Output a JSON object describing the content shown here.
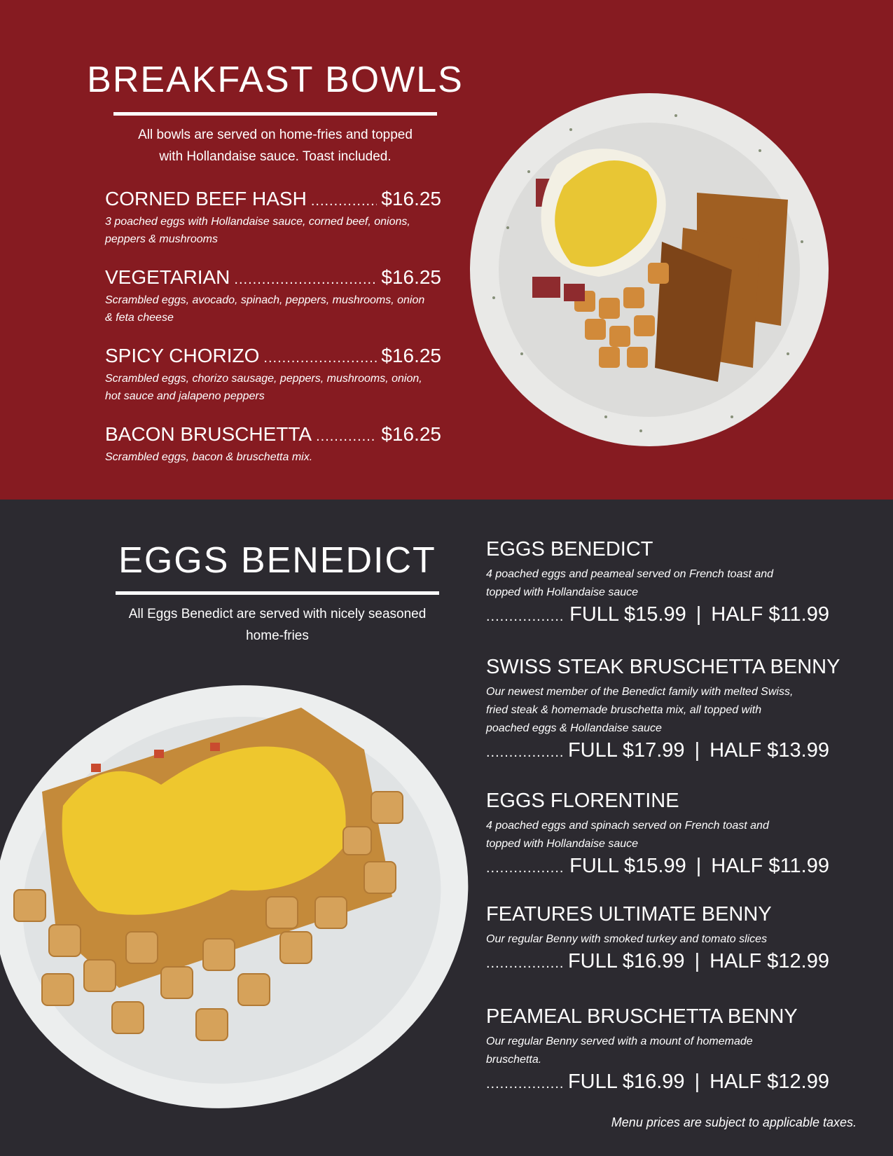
{
  "colors": {
    "top_background": "#861b21",
    "bottom_background": "#2c2a30",
    "text": "#ffffff"
  },
  "breakfast_bowls": {
    "title": "BREAKFAST BOWLS",
    "intro_line1": "All bowls are served on home-fries and topped",
    "intro_line2": "with Hollandaise sauce. Toast included.",
    "items": [
      {
        "name": "CORNED BEEF HASH",
        "price": "$16.25",
        "desc_line1": "3 poached eggs with Hollandaise sauce, corned beef, onions,",
        "desc_line2": "peppers & mushrooms"
      },
      {
        "name": "VEGETARIAN",
        "price": "$16.25",
        "desc_line1": "Scrambled eggs, avocado, spinach, peppers, mushrooms, onion",
        "desc_line2": "& feta cheese"
      },
      {
        "name": "SPICY CHORIZO",
        "price": "$16.25",
        "desc_line1": "Scrambled eggs, chorizo sausage, peppers, mushrooms, onion,",
        "desc_line2": "hot sauce and jalapeno peppers"
      },
      {
        "name": "BACON BRUSCHETTA",
        "price": "$16.25",
        "desc_line1": "Scrambled eggs, bacon & bruschetta mix.",
        "desc_line2": ""
      }
    ]
  },
  "eggs_benedict": {
    "title": "EGGS BENEDICT",
    "intro_line1": "All Eggs Benedict are served with nicely seasoned",
    "intro_line2": "home-fries",
    "items": [
      {
        "name": "EGGS BENEDICT",
        "desc_lines": [
          "4 poached eggs and peameal served on French toast and",
          "topped with Hollandaise sauce"
        ],
        "full": "FULL $15.99",
        "half": "HALF $11.99"
      },
      {
        "name": "SWISS STEAK BRUSCHETTA BENNY",
        "desc_lines": [
          "Our newest member of the Benedict family with melted Swiss,",
          "fried steak & homemade bruschetta mix, all topped with",
          "poached eggs & Hollandaise sauce"
        ],
        "full": "FULL $17.99",
        "half": "HALF $13.99"
      },
      {
        "name": "EGGS FLORENTINE",
        "desc_lines": [
          "4 poached eggs and spinach served on French toast and",
          "topped with Hollandaise sauce"
        ],
        "full": "FULL $15.99",
        "half": "HALF $11.99"
      },
      {
        "name": "FEATURES ULTIMATE BENNY",
        "desc_lines": [
          "Our regular Benny with smoked turkey and tomato slices"
        ],
        "full": "FULL $16.99",
        "half": "HALF $12.99"
      },
      {
        "name": "PEAMEAL BRUSCHETTA BENNY",
        "desc_lines": [
          "Our regular Benny served with a mount of homemade",
          "bruschetta."
        ],
        "full": "FULL $16.99",
        "half": "HALF $12.99"
      }
    ],
    "separator": "|"
  },
  "footer_note": "Menu prices are subject to applicable taxes."
}
